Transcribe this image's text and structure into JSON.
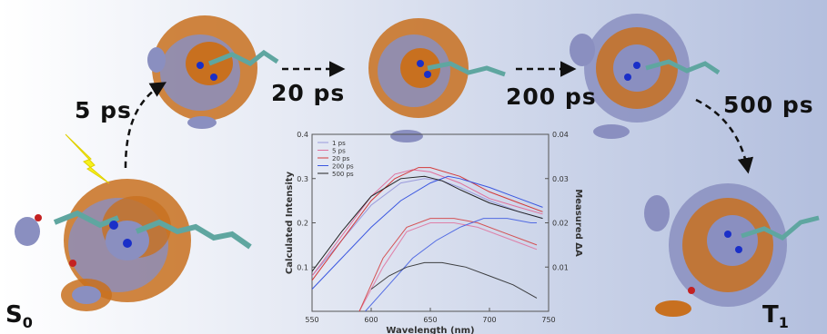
{
  "labels": {
    "t1": "5 ps",
    "t2": "20 ps",
    "t3": "200 ps",
    "t4": "500 ps",
    "state_start_main": "S",
    "state_start_sub": "0",
    "state_end_main": "T",
    "state_end_sub": "1"
  },
  "colors": {
    "orbital_orange": "#c8701f",
    "orbital_purple": "#8a8fc0",
    "bond_teal": "#5fa6a0",
    "nitrogen_blue": "#1a2fc8",
    "oxygen_red": "#c42121",
    "flash_yellow": "#f7f21c",
    "arrow": "#111111"
  },
  "chart_data": {
    "type": "line",
    "xlabel": "Wavelength (nm)",
    "ylabel": "Calculated Intensity",
    "y2label": "Measured ΔA",
    "xlim": [
      550,
      750
    ],
    "ylim": [
      0,
      0.4
    ],
    "y2lim": [
      0,
      0.04
    ],
    "xticks": [
      "550",
      "600",
      "650",
      "700",
      "750"
    ],
    "yticks": [
      "0.1",
      "0.2",
      "0.3",
      "0.4"
    ],
    "y2ticks": [
      "0.01",
      "0.02",
      "0.03",
      "0.04"
    ],
    "legend_position": "top-left",
    "series": [
      {
        "name": "1 ps",
        "color": "#9a9adb",
        "calc": {
          "x": [
            550,
            575,
            600,
            625,
            645,
            660,
            675,
            700,
            725,
            745
          ],
          "y": [
            0.08,
            0.16,
            0.24,
            0.29,
            0.3,
            0.295,
            0.28,
            0.25,
            0.225,
            0.21
          ]
        },
        "meas": {
          "x": [],
          "y": []
        }
      },
      {
        "name": "5 ps",
        "color": "#e0709c",
        "calc": {
          "x": [
            550,
            575,
            600,
            620,
            635,
            650,
            675,
            700,
            725,
            745
          ],
          "y": [
            0.08,
            0.17,
            0.26,
            0.31,
            0.32,
            0.315,
            0.29,
            0.255,
            0.235,
            0.22
          ]
        },
        "meas": {
          "x": [
            590,
            610,
            630,
            650,
            670,
            690,
            710,
            730,
            740
          ],
          "y": [
            0.0,
            0.01,
            0.018,
            0.02,
            0.02,
            0.019,
            0.017,
            0.015,
            0.014
          ]
        }
      },
      {
        "name": "20 ps",
        "color": "#d43a3a",
        "calc": {
          "x": [
            550,
            575,
            600,
            620,
            640,
            650,
            675,
            700,
            725,
            745
          ],
          "y": [
            0.07,
            0.16,
            0.25,
            0.3,
            0.325,
            0.325,
            0.305,
            0.27,
            0.245,
            0.225
          ]
        },
        "meas": {
          "x": [
            590,
            610,
            630,
            650,
            670,
            690,
            710,
            730,
            740
          ],
          "y": [
            0.0,
            0.012,
            0.019,
            0.021,
            0.021,
            0.02,
            0.018,
            0.016,
            0.015
          ]
        }
      },
      {
        "name": "200 ps",
        "color": "#3b57e0",
        "calc": {
          "x": [
            550,
            575,
            600,
            625,
            650,
            665,
            675,
            700,
            725,
            745
          ],
          "y": [
            0.05,
            0.12,
            0.19,
            0.25,
            0.29,
            0.305,
            0.3,
            0.28,
            0.255,
            0.235
          ]
        },
        "meas": {
          "x": [
            595,
            615,
            635,
            655,
            675,
            695,
            715,
            735,
            740
          ],
          "y": [
            0.0,
            0.006,
            0.012,
            0.016,
            0.019,
            0.021,
            0.021,
            0.02,
            0.02
          ]
        }
      },
      {
        "name": "500 ps",
        "color": "#222222",
        "calc": {
          "x": [
            550,
            575,
            600,
            625,
            645,
            660,
            675,
            700,
            725,
            745
          ],
          "y": [
            0.09,
            0.18,
            0.26,
            0.3,
            0.305,
            0.295,
            0.275,
            0.245,
            0.225,
            0.21
          ]
        },
        "meas": {
          "x": [
            600,
            615,
            630,
            645,
            660,
            680,
            700,
            720,
            740
          ],
          "y": [
            0.005,
            0.008,
            0.01,
            0.011,
            0.011,
            0.01,
            0.008,
            0.006,
            0.003
          ]
        }
      }
    ]
  }
}
